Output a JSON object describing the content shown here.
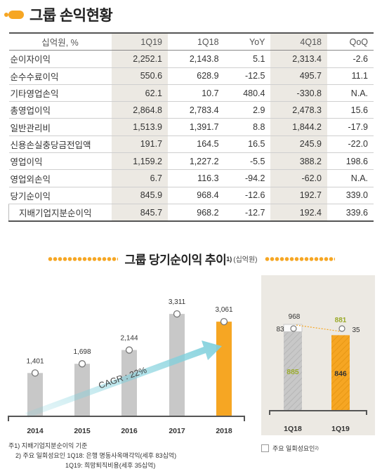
{
  "page": {
    "title": "그룹 손익현황"
  },
  "table": {
    "columns": [
      "십억원, %",
      "1Q19",
      "1Q18",
      "YoY",
      "4Q18",
      "QoQ"
    ],
    "rows": [
      {
        "label": "순이자이익",
        "indent": false,
        "values": [
          "2,252.1",
          "2,143.8",
          "5.1",
          "2,313.4",
          "-2.6"
        ]
      },
      {
        "label": "순수수료이익",
        "indent": false,
        "values": [
          "550.6",
          "628.9",
          "-12.5",
          "495.7",
          "11.1"
        ]
      },
      {
        "label": "기타영업손익",
        "indent": false,
        "values": [
          "62.1",
          "10.7",
          "480.4",
          "-330.8",
          "N.A."
        ]
      },
      {
        "label": "총영업이익",
        "indent": false,
        "values": [
          "2,864.8",
          "2,783.4",
          "2.9",
          "2,478.3",
          "15.6"
        ]
      },
      {
        "label": "일반관리비",
        "indent": false,
        "values": [
          "1,513.9",
          "1,391.7",
          "8.8",
          "1,844.2",
          "-17.9"
        ]
      },
      {
        "label": "신용손실충당금전입액",
        "indent": false,
        "values": [
          "191.7",
          "164.5",
          "16.5",
          "245.9",
          "-22.0"
        ]
      },
      {
        "label": "영업이익",
        "indent": false,
        "values": [
          "1,159.2",
          "1,227.2",
          "-5.5",
          "388.2",
          "198.6"
        ]
      },
      {
        "label": "영업외손익",
        "indent": false,
        "values": [
          "6.7",
          "116.3",
          "-94.2",
          "-62.0",
          "N.A."
        ]
      },
      {
        "label": "당기순이익",
        "indent": false,
        "values": [
          "845.9",
          "968.4",
          "-12.6",
          "192.7",
          "339.0"
        ]
      },
      {
        "label": "지배기업지분순이익",
        "indent": true,
        "values": [
          "845.7",
          "968.2",
          "-12.7",
          "192.4",
          "339.6"
        ]
      }
    ]
  },
  "chart_section": {
    "title": "그룹 당기순이익 추이",
    "title_sup": "1)",
    "unit": "(십억원)"
  },
  "chart_data": [
    {
      "type": "bar",
      "categories": [
        "2014",
        "2015",
        "2016",
        "2017",
        "2018"
      ],
      "values": [
        1401,
        1698,
        2144,
        3311,
        3061
      ],
      "value_labels": [
        "1,401",
        "1,698",
        "2,144",
        "3,311",
        "3,061"
      ],
      "ylim": [
        0,
        3700
      ],
      "annotation": "CAGR : 22%",
      "colors": {
        "bar": "#c8c8c8",
        "highlight": "#f6a623",
        "arrow": "#7fd0dc"
      }
    },
    {
      "type": "bar",
      "categories": [
        "1Q18",
        "1Q19"
      ],
      "series": [
        {
          "values": [
            885,
            846
          ],
          "labels": [
            "885",
            "846"
          ]
        },
        {
          "values": [
            83,
            35
          ],
          "labels": [
            "83",
            "35"
          ]
        }
      ],
      "totals": [
        968,
        881
      ],
      "total_labels": [
        "968",
        "881"
      ],
      "legend": "주요 일회성요인",
      "legend_sup": "2)",
      "ylim": [
        0,
        1250
      ],
      "colors": {
        "q18": "#c8c8c8",
        "q19": "#f6a623",
        "label_green": "#9aaa2a"
      }
    }
  ],
  "notes": [
    "주1) 지배기업지분순이익 기준",
    "2) 주요 일회성요인 1Q18: 은행 명동사옥매각익(세후 83십억)",
    "1Q19: 희망퇴직비용(세후 35십억)"
  ]
}
